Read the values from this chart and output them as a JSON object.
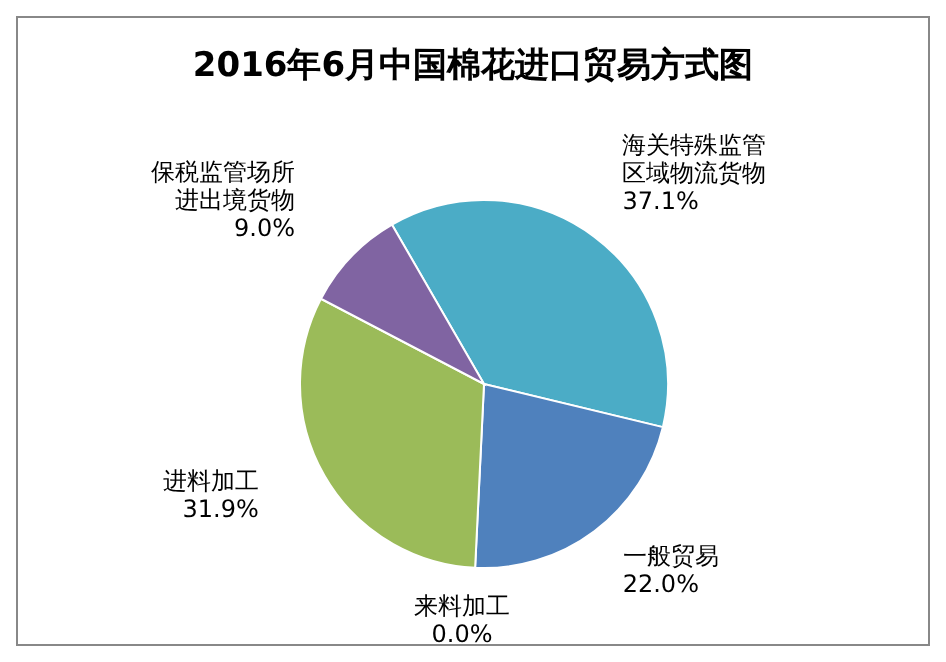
{
  "chart_data": {
    "type": "pie",
    "title": "2016年6月中国棉花进口贸易方式图",
    "categories": [
      "海关特殊监管区域物流货物",
      "一般贸易",
      "来料加工",
      "进料加工",
      "保税监管场所进出境货物"
    ],
    "values": [
      37.1,
      22.0,
      0.0,
      31.9,
      9.0
    ],
    "colors": [
      "#4bacc6",
      "#4f81bd",
      "#8b2b2b",
      "#9bbb59",
      "#8064a2"
    ],
    "value_labels": [
      "37.1%",
      "22.0%",
      "0.0%",
      "31.9%",
      "9.0%"
    ]
  }
}
